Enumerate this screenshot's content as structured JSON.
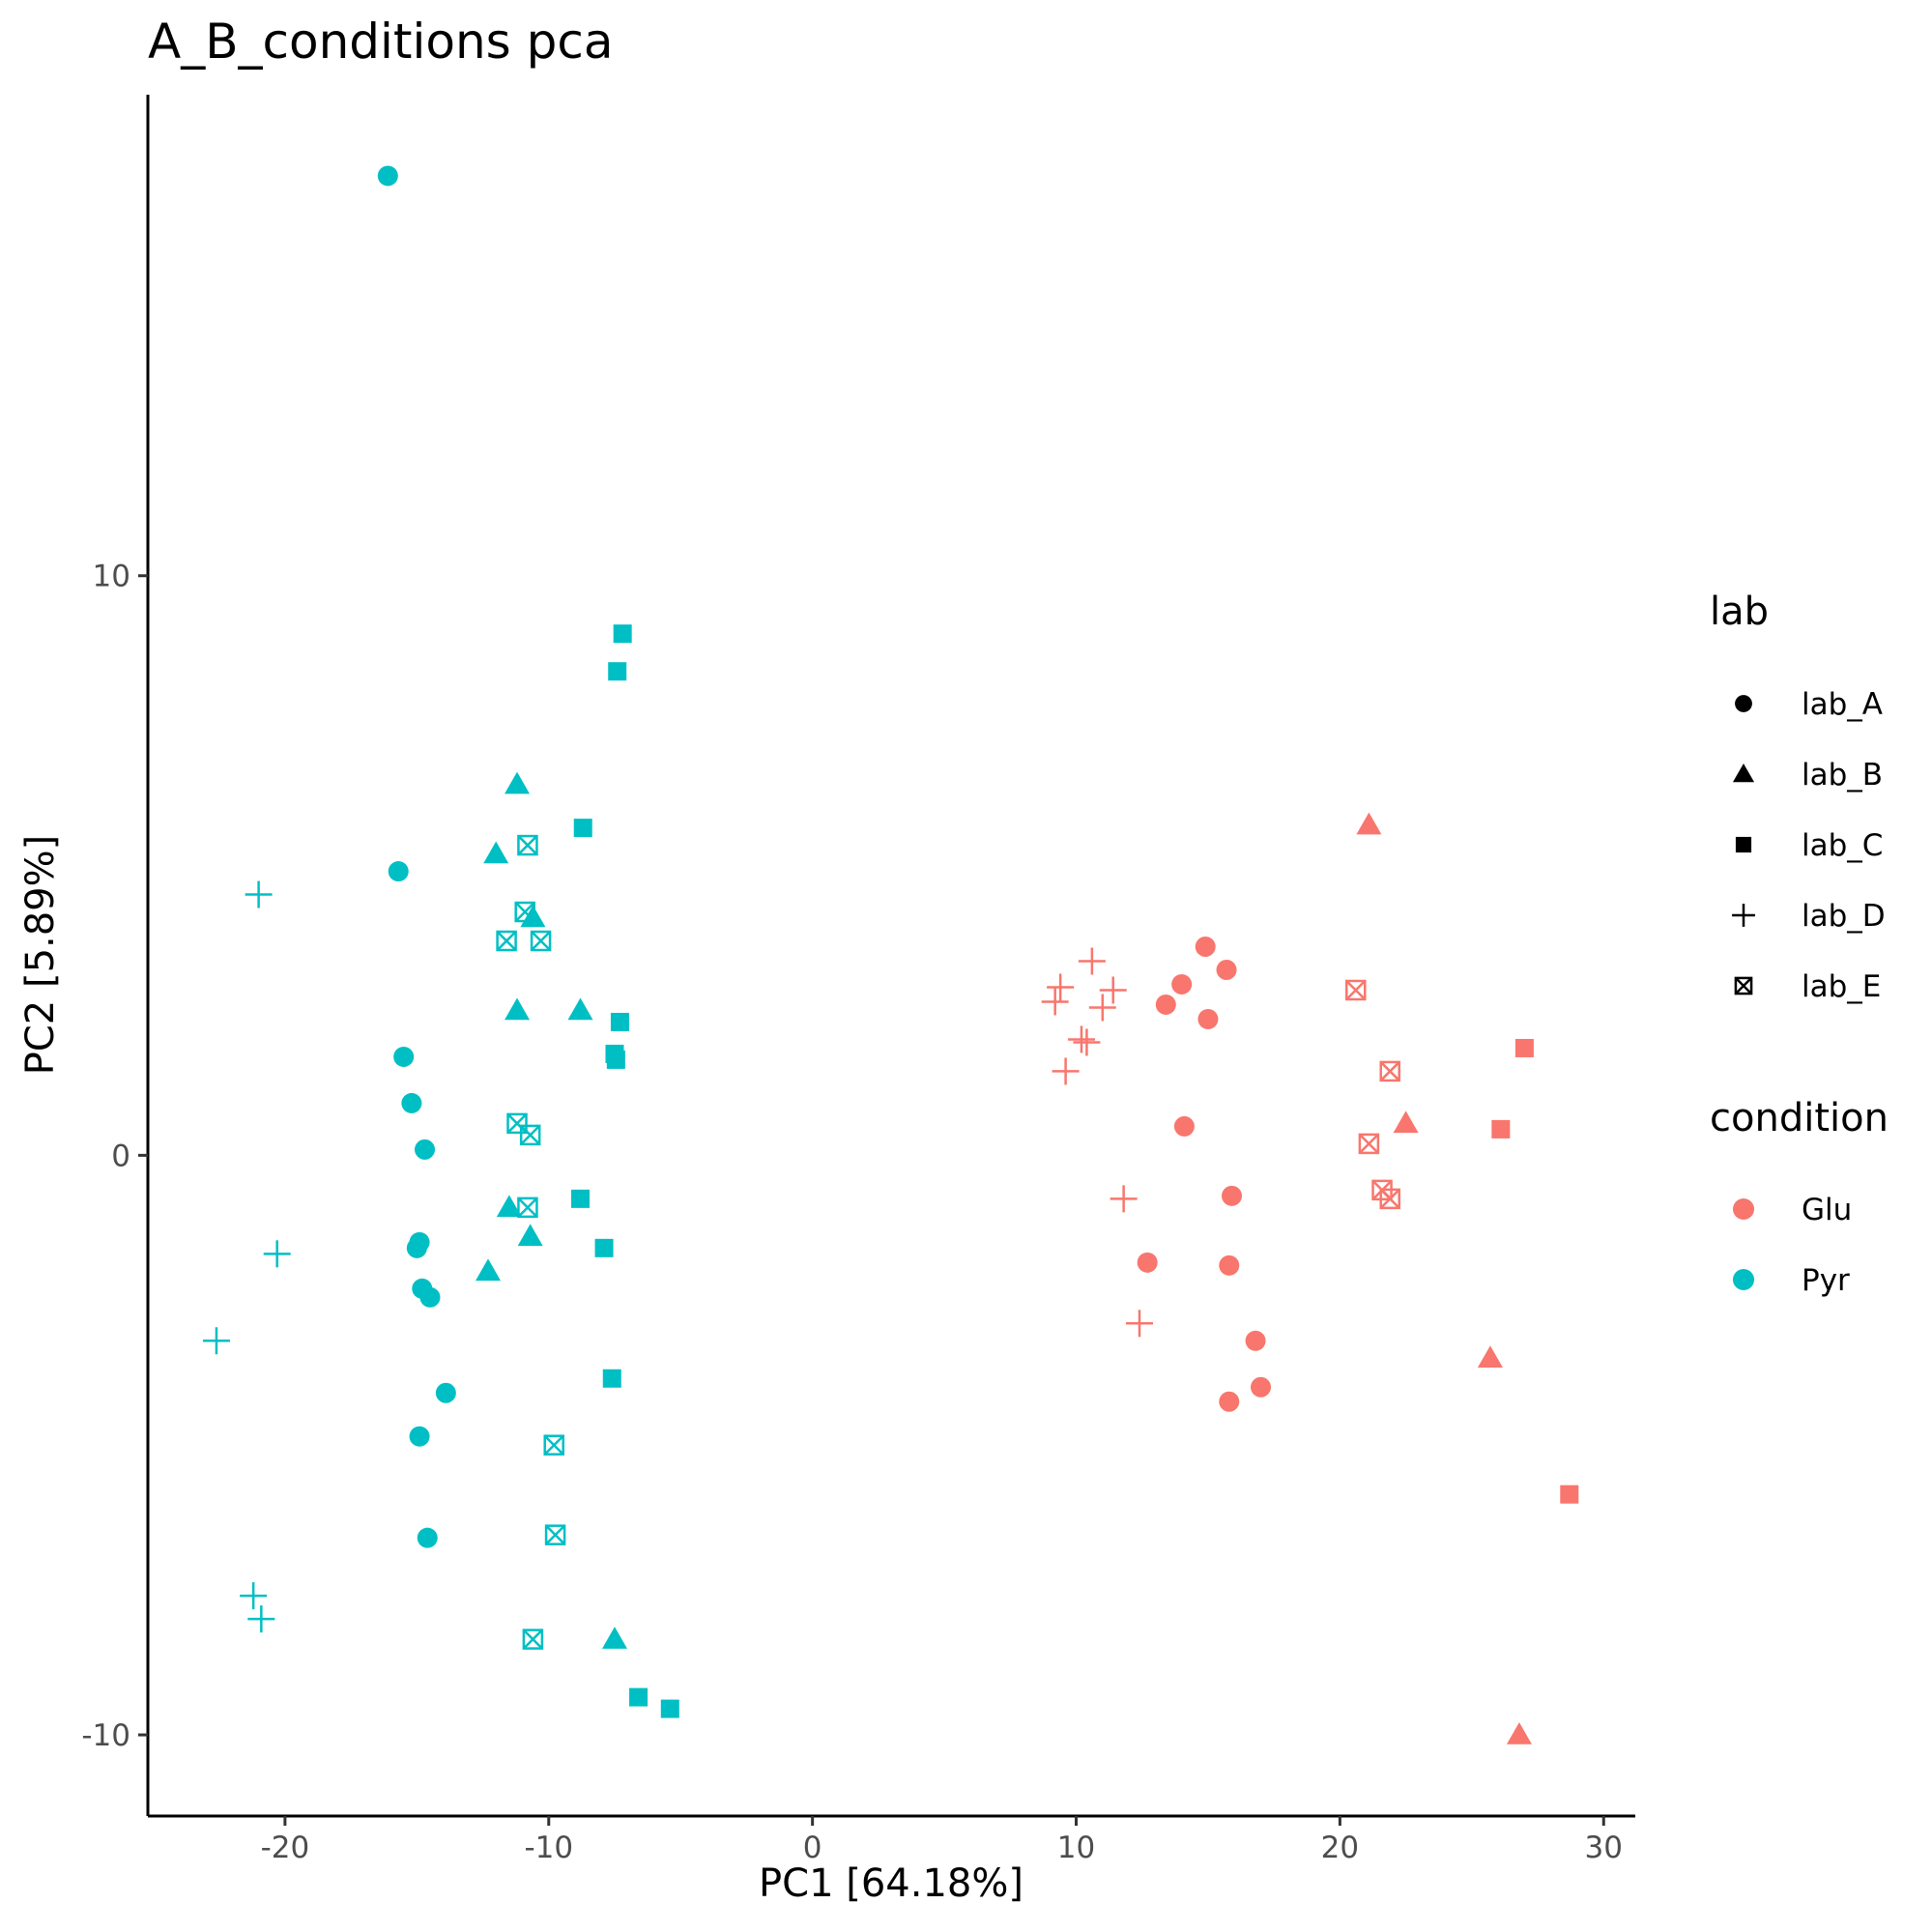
{
  "chart_data": {
    "type": "scatter",
    "title": "A_B_conditions pca",
    "xlabel": "PC1 [64.18%]",
    "ylabel": "PC2 [5.89%]",
    "xlim": [
      -25.2,
      31.2
    ],
    "ylim": [
      -11.4,
      18.3
    ],
    "xticks": [
      -20,
      -10,
      0,
      10,
      20,
      30
    ],
    "xtick_labels": [
      "-20",
      "-10",
      "0",
      "10",
      "20",
      "30"
    ],
    "yticks": [
      -10,
      0,
      10
    ],
    "ytick_labels": [
      "-10",
      "0",
      "10"
    ],
    "grid": false,
    "legends": [
      {
        "title": "lab",
        "entries": [
          {
            "label": "lab_A",
            "shape": "circle"
          },
          {
            "label": "lab_B",
            "shape": "triangle"
          },
          {
            "label": "lab_C",
            "shape": "square"
          },
          {
            "label": "lab_D",
            "shape": "plus"
          },
          {
            "label": "lab_E",
            "shape": "boxx"
          }
        ]
      },
      {
        "title": "condition",
        "entries": [
          {
            "label": "Glu",
            "color": "#F8766D"
          },
          {
            "label": "Pyr",
            "color": "#00BFC4"
          }
        ]
      }
    ],
    "colors": {
      "Glu": "#F8766D",
      "Pyr": "#00BFC4"
    },
    "shapes": {
      "lab_A": "circle",
      "lab_B": "triangle",
      "lab_C": "square",
      "lab_D": "plus",
      "lab_E": "boxx"
    },
    "points": [
      {
        "x": -16.1,
        "y": 16.9,
        "lab": "lab_A",
        "condition": "Pyr"
      },
      {
        "x": -15.7,
        "y": 4.9,
        "lab": "lab_A",
        "condition": "Pyr"
      },
      {
        "x": -15.5,
        "y": 1.7,
        "lab": "lab_A",
        "condition": "Pyr"
      },
      {
        "x": -15.2,
        "y": 0.9,
        "lab": "lab_A",
        "condition": "Pyr"
      },
      {
        "x": -14.7,
        "y": 0.1,
        "lab": "lab_A",
        "condition": "Pyr"
      },
      {
        "x": -14.9,
        "y": -1.5,
        "lab": "lab_A",
        "condition": "Pyr"
      },
      {
        "x": -15.0,
        "y": -1.6,
        "lab": "lab_A",
        "condition": "Pyr"
      },
      {
        "x": -14.8,
        "y": -2.3,
        "lab": "lab_A",
        "condition": "Pyr"
      },
      {
        "x": -14.5,
        "y": -2.45,
        "lab": "lab_A",
        "condition": "Pyr"
      },
      {
        "x": -13.9,
        "y": -4.1,
        "lab": "lab_A",
        "condition": "Pyr"
      },
      {
        "x": -14.9,
        "y": -4.85,
        "lab": "lab_A",
        "condition": "Pyr"
      },
      {
        "x": -14.6,
        "y": -6.6,
        "lab": "lab_A",
        "condition": "Pyr"
      },
      {
        "x": -11.2,
        "y": 6.4,
        "lab": "lab_B",
        "condition": "Pyr"
      },
      {
        "x": -12.0,
        "y": 5.2,
        "lab": "lab_B",
        "condition": "Pyr"
      },
      {
        "x": -10.6,
        "y": 4.1,
        "lab": "lab_B",
        "condition": "Pyr"
      },
      {
        "x": -11.2,
        "y": 2.5,
        "lab": "lab_B",
        "condition": "Pyr"
      },
      {
        "x": -8.8,
        "y": 2.5,
        "lab": "lab_B",
        "condition": "Pyr"
      },
      {
        "x": -11.5,
        "y": -0.9,
        "lab": "lab_B",
        "condition": "Pyr"
      },
      {
        "x": -10.7,
        "y": -1.4,
        "lab": "lab_B",
        "condition": "Pyr"
      },
      {
        "x": -12.3,
        "y": -2.0,
        "lab": "lab_B",
        "condition": "Pyr"
      },
      {
        "x": -7.5,
        "y": -8.35,
        "lab": "lab_B",
        "condition": "Pyr"
      },
      {
        "x": -7.2,
        "y": 9.0,
        "lab": "lab_C",
        "condition": "Pyr"
      },
      {
        "x": -7.4,
        "y": 8.35,
        "lab": "lab_C",
        "condition": "Pyr"
      },
      {
        "x": -8.7,
        "y": 5.65,
        "lab": "lab_C",
        "condition": "Pyr"
      },
      {
        "x": -7.3,
        "y": 2.3,
        "lab": "lab_C",
        "condition": "Pyr"
      },
      {
        "x": -7.5,
        "y": 1.75,
        "lab": "lab_C",
        "condition": "Pyr"
      },
      {
        "x": -7.45,
        "y": 1.65,
        "lab": "lab_C",
        "condition": "Pyr"
      },
      {
        "x": -8.8,
        "y": -0.75,
        "lab": "lab_C",
        "condition": "Pyr"
      },
      {
        "x": -7.9,
        "y": -1.6,
        "lab": "lab_C",
        "condition": "Pyr"
      },
      {
        "x": -7.6,
        "y": -3.85,
        "lab": "lab_C",
        "condition": "Pyr"
      },
      {
        "x": -6.6,
        "y": -9.35,
        "lab": "lab_C",
        "condition": "Pyr"
      },
      {
        "x": -5.4,
        "y": -9.55,
        "lab": "lab_C",
        "condition": "Pyr"
      },
      {
        "x": -21.0,
        "y": 4.5,
        "lab": "lab_D",
        "condition": "Pyr"
      },
      {
        "x": -20.3,
        "y": -1.7,
        "lab": "lab_D",
        "condition": "Pyr"
      },
      {
        "x": -22.6,
        "y": -3.2,
        "lab": "lab_D",
        "condition": "Pyr"
      },
      {
        "x": -21.2,
        "y": -7.6,
        "lab": "lab_D",
        "condition": "Pyr"
      },
      {
        "x": -20.9,
        "y": -8.0,
        "lab": "lab_D",
        "condition": "Pyr"
      },
      {
        "x": -10.8,
        "y": 5.35,
        "lab": "lab_E",
        "condition": "Pyr"
      },
      {
        "x": -10.9,
        "y": 4.2,
        "lab": "lab_E",
        "condition": "Pyr"
      },
      {
        "x": -11.6,
        "y": 3.7,
        "lab": "lab_E",
        "condition": "Pyr"
      },
      {
        "x": -10.3,
        "y": 3.7,
        "lab": "lab_E",
        "condition": "Pyr"
      },
      {
        "x": -11.2,
        "y": 0.55,
        "lab": "lab_E",
        "condition": "Pyr"
      },
      {
        "x": -10.7,
        "y": 0.35,
        "lab": "lab_E",
        "condition": "Pyr"
      },
      {
        "x": -10.8,
        "y": -0.9,
        "lab": "lab_E",
        "condition": "Pyr"
      },
      {
        "x": -9.8,
        "y": -5.0,
        "lab": "lab_E",
        "condition": "Pyr"
      },
      {
        "x": -9.75,
        "y": -6.55,
        "lab": "lab_E",
        "condition": "Pyr"
      },
      {
        "x": -10.6,
        "y": -8.35,
        "lab": "lab_E",
        "condition": "Pyr"
      },
      {
        "x": 14.9,
        "y": 3.6,
        "lab": "lab_A",
        "condition": "Glu"
      },
      {
        "x": 15.7,
        "y": 3.2,
        "lab": "lab_A",
        "condition": "Glu"
      },
      {
        "x": 14.0,
        "y": 2.95,
        "lab": "lab_A",
        "condition": "Glu"
      },
      {
        "x": 13.4,
        "y": 2.6,
        "lab": "lab_A",
        "condition": "Glu"
      },
      {
        "x": 15.0,
        "y": 2.35,
        "lab": "lab_A",
        "condition": "Glu"
      },
      {
        "x": 14.1,
        "y": 0.5,
        "lab": "lab_A",
        "condition": "Glu"
      },
      {
        "x": 15.9,
        "y": -0.7,
        "lab": "lab_A",
        "condition": "Glu"
      },
      {
        "x": 12.7,
        "y": -1.85,
        "lab": "lab_A",
        "condition": "Glu"
      },
      {
        "x": 15.8,
        "y": -1.9,
        "lab": "lab_A",
        "condition": "Glu"
      },
      {
        "x": 16.8,
        "y": -3.2,
        "lab": "lab_A",
        "condition": "Glu"
      },
      {
        "x": 17.0,
        "y": -4.0,
        "lab": "lab_A",
        "condition": "Glu"
      },
      {
        "x": 15.8,
        "y": -4.25,
        "lab": "lab_A",
        "condition": "Glu"
      },
      {
        "x": 21.1,
        "y": 5.7,
        "lab": "lab_B",
        "condition": "Glu"
      },
      {
        "x": 22.5,
        "y": 0.55,
        "lab": "lab_B",
        "condition": "Glu"
      },
      {
        "x": 25.7,
        "y": -3.5,
        "lab": "lab_B",
        "condition": "Glu"
      },
      {
        "x": 26.8,
        "y": -10.0,
        "lab": "lab_B",
        "condition": "Glu"
      },
      {
        "x": 27.0,
        "y": 1.85,
        "lab": "lab_C",
        "condition": "Glu"
      },
      {
        "x": 26.1,
        "y": 0.45,
        "lab": "lab_C",
        "condition": "Glu"
      },
      {
        "x": 28.7,
        "y": -5.85,
        "lab": "lab_C",
        "condition": "Glu"
      },
      {
        "x": 10.6,
        "y": 3.35,
        "lab": "lab_D",
        "condition": "Glu"
      },
      {
        "x": 9.4,
        "y": 2.9,
        "lab": "lab_D",
        "condition": "Glu"
      },
      {
        "x": 11.4,
        "y": 2.85,
        "lab": "lab_D",
        "condition": "Glu"
      },
      {
        "x": 9.2,
        "y": 2.65,
        "lab": "lab_D",
        "condition": "Glu"
      },
      {
        "x": 11.0,
        "y": 2.55,
        "lab": "lab_D",
        "condition": "Glu"
      },
      {
        "x": 10.2,
        "y": 2.0,
        "lab": "lab_D",
        "condition": "Glu"
      },
      {
        "x": 10.4,
        "y": 1.95,
        "lab": "lab_D",
        "condition": "Glu"
      },
      {
        "x": 9.6,
        "y": 1.45,
        "lab": "lab_D",
        "condition": "Glu"
      },
      {
        "x": 11.8,
        "y": -0.75,
        "lab": "lab_D",
        "condition": "Glu"
      },
      {
        "x": 12.4,
        "y": -2.9,
        "lab": "lab_D",
        "condition": "Glu"
      },
      {
        "x": 20.6,
        "y": 2.85,
        "lab": "lab_E",
        "condition": "Glu"
      },
      {
        "x": 21.9,
        "y": 1.45,
        "lab": "lab_E",
        "condition": "Glu"
      },
      {
        "x": 21.1,
        "y": 0.2,
        "lab": "lab_E",
        "condition": "Glu"
      },
      {
        "x": 21.6,
        "y": -0.6,
        "lab": "lab_E",
        "condition": "Glu"
      },
      {
        "x": 21.9,
        "y": -0.75,
        "lab": "lab_E",
        "condition": "Glu"
      }
    ]
  }
}
